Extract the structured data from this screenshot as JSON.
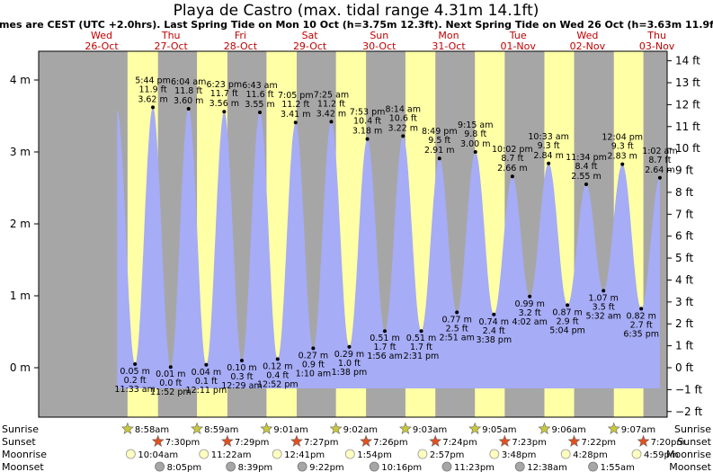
{
  "title": "Playa de Castro (max. tidal range 4.31m 14.1ft)",
  "subtitle": "Times are CEST (UTC +2.0hrs). Last Spring Tide on Mon 10 Oct (h=3.75m 12.3ft). Next Spring Tide on Wed 26 Oct (h=3.63m 11.9ft)",
  "days": [
    {
      "wd": "Wed",
      "date": "26-Oct"
    },
    {
      "wd": "Thu",
      "date": "27-Oct"
    },
    {
      "wd": "Fri",
      "date": "28-Oct"
    },
    {
      "wd": "Sat",
      "date": "29-Oct"
    },
    {
      "wd": "Sun",
      "date": "30-Oct"
    },
    {
      "wd": "Mon",
      "date": "31-Oct"
    },
    {
      "wd": "Tue",
      "date": "01-Nov"
    },
    {
      "wd": "Wed",
      "date": "02-Nov"
    },
    {
      "wd": "Thu",
      "date": "03-Nov"
    }
  ],
  "astro_labels": {
    "sunrise": "Sunrise",
    "sunset": "Sunset",
    "moonrise": "Moonrise",
    "moonset": "Moonset"
  },
  "colors": {
    "night": "#a6a6a6",
    "day": "#ffffa6",
    "water": "#a6acf5",
    "star_rise": "#c8c83c",
    "star_set": "#e05020",
    "moon": "#ffffc0",
    "moonset": "#a6a6a6"
  },
  "chart_data": {
    "type": "area",
    "title": "Playa de Castro (max. tidal range 4.31m 14.1ft)",
    "ylim_m": [
      -0.45,
      4.6
    ],
    "y_ticks_m": [
      "4 m",
      "3 m",
      "2 m",
      "1 m",
      "0 m"
    ],
    "y_ticks_ft": [
      "14 ft",
      "13 ft",
      "12 ft",
      "11 ft",
      "10 ft",
      "9 ft",
      "8 ft",
      "7 ft",
      "6 ft",
      "5 ft",
      "4 ft",
      "3 ft",
      "2 ft",
      "1 ft",
      "0 ft",
      "−1 ft",
      "−2 ft"
    ],
    "tides": [
      {
        "t": "11:33 am",
        "day": 0,
        "hour": 11.55,
        "m": 0.05,
        "ft": "0.2 ft",
        "type": "low"
      },
      {
        "t": "5:44 pm",
        "day": 0,
        "hour": 17.73,
        "m": 3.62,
        "ft": "11.9 ft",
        "type": "high"
      },
      {
        "t": "11:52 pm",
        "day": 0,
        "hour": 23.87,
        "m": 0.01,
        "ft": "0.0 ft",
        "type": "low"
      },
      {
        "t": "6:04 am",
        "day": 1,
        "hour": 6.07,
        "m": 3.6,
        "ft": "11.8 ft",
        "type": "high"
      },
      {
        "t": "12:11 pm",
        "day": 1,
        "hour": 12.18,
        "m": 0.04,
        "ft": "0.1 ft",
        "type": "low"
      },
      {
        "t": "6:23 pm",
        "day": 1,
        "hour": 18.38,
        "m": 3.56,
        "ft": "11.7 ft",
        "type": "high"
      },
      {
        "t": "12:29 am",
        "day": 2,
        "hour": 0.48,
        "m": 0.1,
        "ft": "0.3 ft",
        "type": "low"
      },
      {
        "t": "6:43 am",
        "day": 2,
        "hour": 6.72,
        "m": 3.55,
        "ft": "11.6 ft",
        "type": "high"
      },
      {
        "t": "12:52 pm",
        "day": 2,
        "hour": 12.87,
        "m": 0.12,
        "ft": "0.4 ft",
        "type": "low"
      },
      {
        "t": "7:05 pm",
        "day": 2,
        "hour": 19.08,
        "m": 3.41,
        "ft": "11.2 ft",
        "type": "high"
      },
      {
        "t": "1:10 am",
        "day": 3,
        "hour": 1.17,
        "m": 0.27,
        "ft": "0.9 ft",
        "type": "low"
      },
      {
        "t": "7:25 am",
        "day": 3,
        "hour": 7.42,
        "m": 3.42,
        "ft": "11.2 ft",
        "type": "high"
      },
      {
        "t": "1:38 pm",
        "day": 3,
        "hour": 13.63,
        "m": 0.29,
        "ft": "1.0 ft",
        "type": "low"
      },
      {
        "t": "7:53 pm",
        "day": 3,
        "hour": 19.88,
        "m": 3.18,
        "ft": "10.4 ft",
        "type": "high"
      },
      {
        "t": "1:56 am",
        "day": 4,
        "hour": 1.93,
        "m": 0.51,
        "ft": "1.7 ft",
        "type": "low"
      },
      {
        "t": "8:14 am",
        "day": 4,
        "hour": 8.23,
        "m": 3.22,
        "ft": "10.6 ft",
        "type": "high"
      },
      {
        "t": "2:31 pm",
        "day": 4,
        "hour": 14.52,
        "m": 0.51,
        "ft": "1.7 ft",
        "type": "low"
      },
      {
        "t": "8:49 pm",
        "day": 4,
        "hour": 20.82,
        "m": 2.91,
        "ft": "9.5 ft",
        "type": "high"
      },
      {
        "t": "2:51 am",
        "day": 5,
        "hour": 2.85,
        "m": 0.77,
        "ft": "2.5 ft",
        "type": "low"
      },
      {
        "t": "9:15 am",
        "day": 5,
        "hour": 9.25,
        "m": 3.0,
        "ft": "9.8 ft",
        "type": "high"
      },
      {
        "t": "3:38 pm",
        "day": 5,
        "hour": 15.63,
        "m": 0.74,
        "ft": "2.4 ft",
        "type": "low"
      },
      {
        "t": "10:02 pm",
        "day": 5,
        "hour": 22.03,
        "m": 2.66,
        "ft": "8.7 ft",
        "type": "high"
      },
      {
        "t": "4:02 am",
        "day": 6,
        "hour": 4.03,
        "m": 0.99,
        "ft": "3.2 ft",
        "type": "low"
      },
      {
        "t": "10:33 am",
        "day": 6,
        "hour": 10.55,
        "m": 2.84,
        "ft": "9.3 ft",
        "type": "high"
      },
      {
        "t": "5:04 pm",
        "day": 6,
        "hour": 17.07,
        "m": 0.87,
        "ft": "2.9 ft",
        "type": "low"
      },
      {
        "t": "11:34 pm",
        "day": 6,
        "hour": 23.57,
        "m": 2.55,
        "ft": "8.4 ft",
        "type": "high"
      },
      {
        "t": "5:32 am",
        "day": 7,
        "hour": 5.53,
        "m": 1.07,
        "ft": "3.5 ft",
        "type": "low"
      },
      {
        "t": "12:04 pm",
        "day": 7,
        "hour": 12.07,
        "m": 2.83,
        "ft": "9.3 ft",
        "type": "high"
      },
      {
        "t": "6:35 pm",
        "day": 7,
        "hour": 18.58,
        "m": 0.82,
        "ft": "2.7 ft",
        "type": "low"
      },
      {
        "t": "1:02 am",
        "day": 8,
        "hour": 1.03,
        "m": 2.64,
        "ft": "8.7 ft",
        "type": "high"
      }
    ],
    "sunrise": [
      {
        "day": 0,
        "hour": 8.97,
        "t": "8:58am"
      },
      {
        "day": 1,
        "hour": 8.98,
        "t": "8:59am"
      },
      {
        "day": 2,
        "hour": 9.02,
        "t": "9:01am"
      },
      {
        "day": 3,
        "hour": 9.03,
        "t": "9:02am"
      },
      {
        "day": 4,
        "hour": 9.05,
        "t": "9:03am"
      },
      {
        "day": 5,
        "hour": 9.08,
        "t": "9:05am"
      },
      {
        "day": 6,
        "hour": 9.1,
        "t": "9:06am"
      },
      {
        "day": 7,
        "hour": 9.12,
        "t": "9:07am"
      }
    ],
    "sunset": [
      {
        "day": 0,
        "hour": 19.5,
        "t": "7:30pm"
      },
      {
        "day": 1,
        "hour": 19.48,
        "t": "7:29pm"
      },
      {
        "day": 2,
        "hour": 19.45,
        "t": "7:27pm"
      },
      {
        "day": 3,
        "hour": 19.43,
        "t": "7:26pm"
      },
      {
        "day": 4,
        "hour": 19.4,
        "t": "7:24pm"
      },
      {
        "day": 5,
        "hour": 19.38,
        "t": "7:23pm"
      },
      {
        "day": 6,
        "hour": 19.37,
        "t": "7:22pm"
      },
      {
        "day": 7,
        "hour": 19.33,
        "t": "7:20pm"
      }
    ],
    "moonrise": [
      {
        "day": 0,
        "hour": 10.07,
        "t": "10:04am"
      },
      {
        "day": 1,
        "hour": 11.37,
        "t": "11:22am"
      },
      {
        "day": 2,
        "hour": 12.68,
        "t": "12:41pm"
      },
      {
        "day": 3,
        "hour": 13.9,
        "t": "1:54pm"
      },
      {
        "day": 4,
        "hour": 14.95,
        "t": "2:57pm"
      },
      {
        "day": 5,
        "hour": 15.8,
        "t": "3:48pm"
      },
      {
        "day": 6,
        "hour": 16.47,
        "t": "4:28pm"
      },
      {
        "day": 7,
        "hour": 16.98,
        "t": "4:59pm"
      }
    ],
    "moonset": [
      {
        "day": 0,
        "hour": 20.08,
        "t": "8:05pm"
      },
      {
        "day": 1,
        "hour": 20.65,
        "t": "8:39pm"
      },
      {
        "day": 2,
        "hour": 21.37,
        "t": "9:22pm"
      },
      {
        "day": 3,
        "hour": 22.27,
        "t": "10:16pm"
      },
      {
        "day": 4,
        "hour": 23.38,
        "t": "11:23pm"
      },
      {
        "day": 6,
        "hour": 0.63,
        "t": "12:38am"
      },
      {
        "day": 7,
        "hour": 1.92,
        "t": "1:55am"
      }
    ]
  }
}
